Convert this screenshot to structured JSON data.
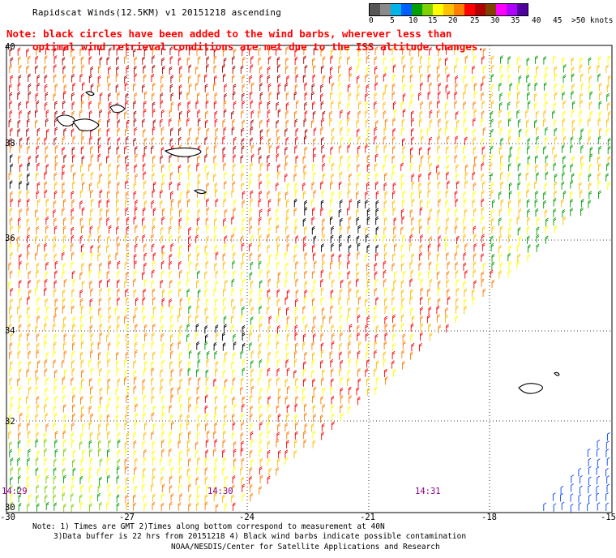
{
  "header": {
    "title": "Rapidscat Winds(12.5KM) v1 20151218 ascending",
    "note_line1": "Note: black circles have been added to the wind barbs, wherever less than",
    "note_line2": "optimal wind retrieval conditions are met due to the ISS altitude changes."
  },
  "colorbar": {
    "colors": [
      "#555555",
      "#8a8a8a",
      "#00b4e6",
      "#0060ff",
      "#00a000",
      "#7fd000",
      "#ffff00",
      "#ffc000",
      "#ff7f00",
      "#ff0000",
      "#b00000",
      "#804000",
      "#ff00ff",
      "#b000ff",
      "#5000a0"
    ],
    "labels": [
      "0",
      "5",
      "10",
      "15",
      "20",
      "25",
      "30",
      "35",
      "40",
      "45",
      ">50 knots"
    ]
  },
  "map": {
    "lat_labels": [
      "40",
      "38",
      "36",
      "34",
      "32",
      "30"
    ],
    "lon_labels": [
      "-30",
      "-27",
      "-24",
      "-21",
      "-18",
      "-15"
    ],
    "time_labels": [
      "14:29",
      "14:30",
      "14:31"
    ],
    "layers": [
      "wind-barbs",
      "coastlines",
      "lat-lon-grid",
      "swath-edge"
    ]
  },
  "footer": {
    "line1": "Note: 1) Times are GMT 2)Times along bottom correspond to measurement at 40N",
    "line2": "3)Data buffer is 22 hrs from 20151218 4) Black wind barbs indicate possible contamination",
    "line3": "NOAA/NESDIS/Center for Satellite Applications and Research"
  }
}
